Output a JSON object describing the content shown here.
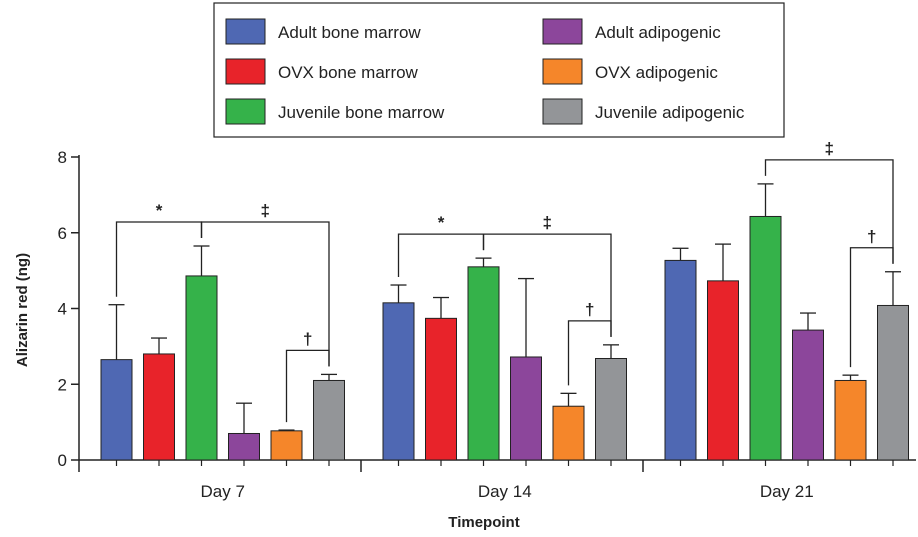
{
  "chart_data": {
    "type": "bar",
    "title": "",
    "xlabel": "Timepoint",
    "ylabel": "Alizarin red (ng)",
    "ylim": [
      0,
      8
    ],
    "yticks": [
      "0",
      "2",
      "4",
      "6",
      "8"
    ],
    "categories": [
      "Day 7",
      "Day 14",
      "Day 21"
    ],
    "series": [
      {
        "name": "Adult bone marrow",
        "color": "#4f68b3",
        "values": [
          2.65,
          4.15,
          5.27
        ],
        "errors": [
          1.45,
          0.47,
          0.32
        ]
      },
      {
        "name": "OVX bone marrow",
        "color": "#e8232a",
        "values": [
          2.8,
          3.74,
          4.73
        ],
        "errors": [
          0.42,
          0.55,
          0.97
        ]
      },
      {
        "name": "Juvenile bone marrow",
        "color": "#35b24a",
        "values": [
          4.86,
          5.1,
          6.43
        ],
        "errors": [
          0.79,
          0.23,
          0.86
        ]
      },
      {
        "name": "Adult adipogenic",
        "color": "#8c469b",
        "values": [
          0.7,
          2.72,
          3.43
        ],
        "errors": [
          0.8,
          2.07,
          0.45
        ]
      },
      {
        "name": "OVX adipogenic",
        "color": "#f5862a",
        "values": [
          0.77,
          1.42,
          2.1
        ],
        "errors": [
          0.02,
          0.34,
          0.14
        ]
      },
      {
        "name": "Juvenile adipogenic",
        "color": "#939598",
        "values": [
          2.1,
          2.68,
          4.08
        ],
        "errors": [
          0.16,
          0.36,
          0.89
        ]
      }
    ],
    "significance": [
      {
        "category": 0,
        "from_series": 0,
        "to_series": 2,
        "label": "*"
      },
      {
        "category": 0,
        "from_series": 2,
        "to_series": 5,
        "label": "‡"
      },
      {
        "category": 0,
        "from_series": 4,
        "to_series": 5,
        "label": "†"
      },
      {
        "category": 1,
        "from_series": 0,
        "to_series": 2,
        "label": "*"
      },
      {
        "category": 1,
        "from_series": 2,
        "to_series": 5,
        "label": "‡"
      },
      {
        "category": 1,
        "from_series": 4,
        "to_series": 5,
        "label": "†"
      },
      {
        "category": 2,
        "from_series": 2,
        "to_series": 5,
        "label": "‡"
      },
      {
        "category": 2,
        "from_series": 4,
        "to_series": 5,
        "label": "†"
      }
    ],
    "legend": {
      "placement": "top-center",
      "columns": 2
    }
  }
}
